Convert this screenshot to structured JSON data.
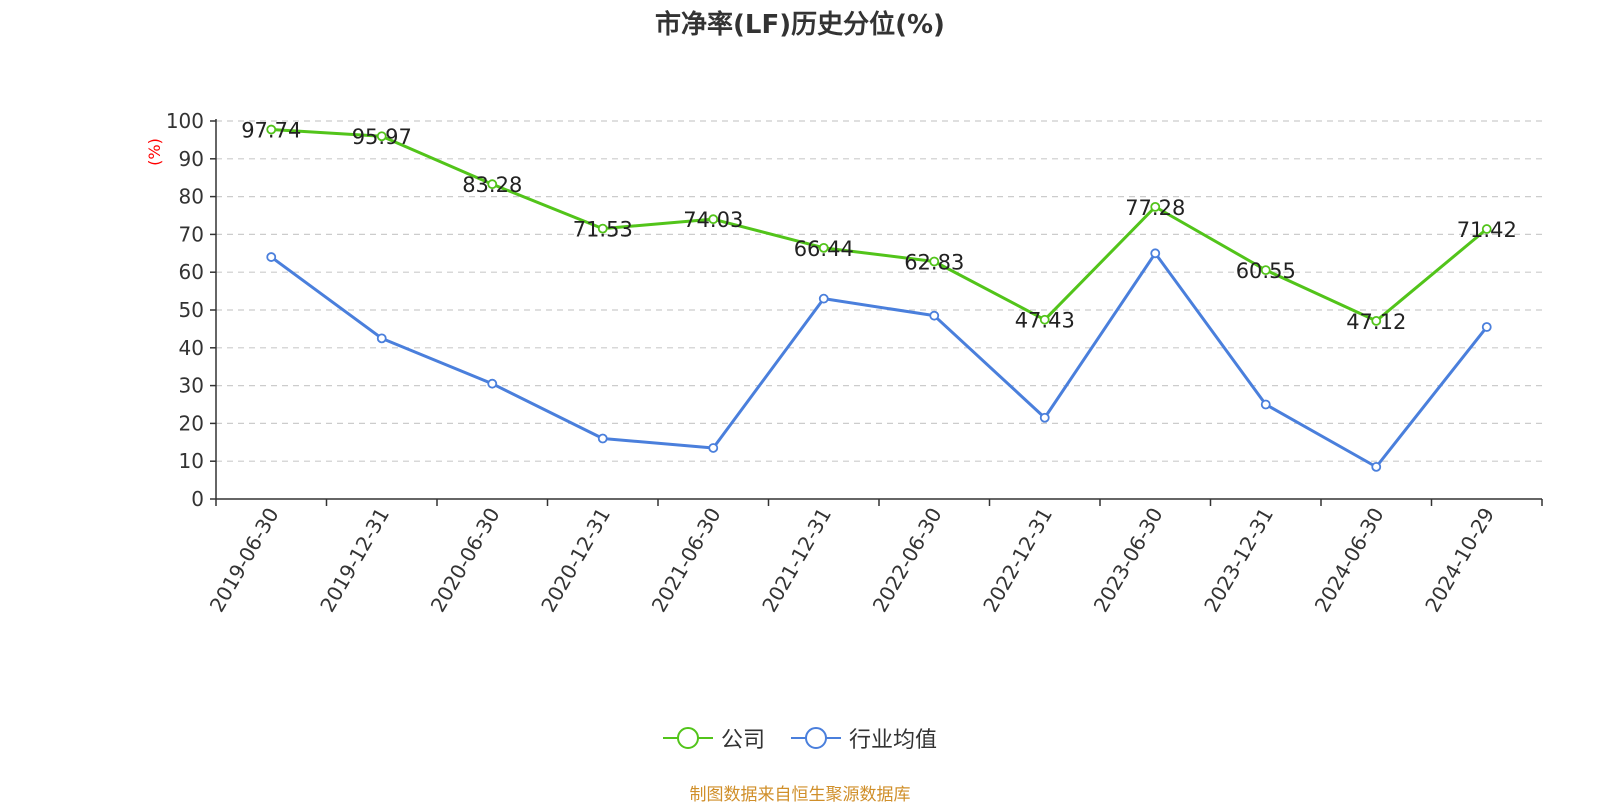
{
  "title": "市净率(LF)历史分位(%)",
  "source_note": "制图数据来自恒生聚源数据库",
  "colors": {
    "company": "#52c41a",
    "industry": "#4a7fdc",
    "ylabel": "#ff0000",
    "source": "#d08f2a"
  },
  "chart_data": {
    "type": "line",
    "title": "市净率(LF)历史分位(%)",
    "xlabel": "",
    "ylabel": "(%)",
    "ylim": [
      0,
      100
    ],
    "yticks": [
      0,
      10,
      20,
      30,
      40,
      50,
      60,
      70,
      80,
      90,
      100
    ],
    "grid": true,
    "legend_position": "bottom",
    "categories": [
      "2019-06-30",
      "2019-12-31",
      "2020-06-30",
      "2020-12-31",
      "2021-06-30",
      "2021-12-31",
      "2022-06-30",
      "2022-12-31",
      "2023-06-30",
      "2023-12-31",
      "2024-06-30",
      "2024-10-29"
    ],
    "series": [
      {
        "name": "公司",
        "color": "#52c41a",
        "show_labels": true,
        "values": [
          97.74,
          95.97,
          83.28,
          71.53,
          74.03,
          66.44,
          62.83,
          47.43,
          77.28,
          60.55,
          47.12,
          71.42
        ]
      },
      {
        "name": "行业均值",
        "color": "#4a7fdc",
        "show_labels": false,
        "values": [
          64,
          42.5,
          30.5,
          16,
          13.5,
          53,
          48.5,
          21.5,
          65,
          25,
          8.5,
          45.5
        ]
      }
    ]
  }
}
